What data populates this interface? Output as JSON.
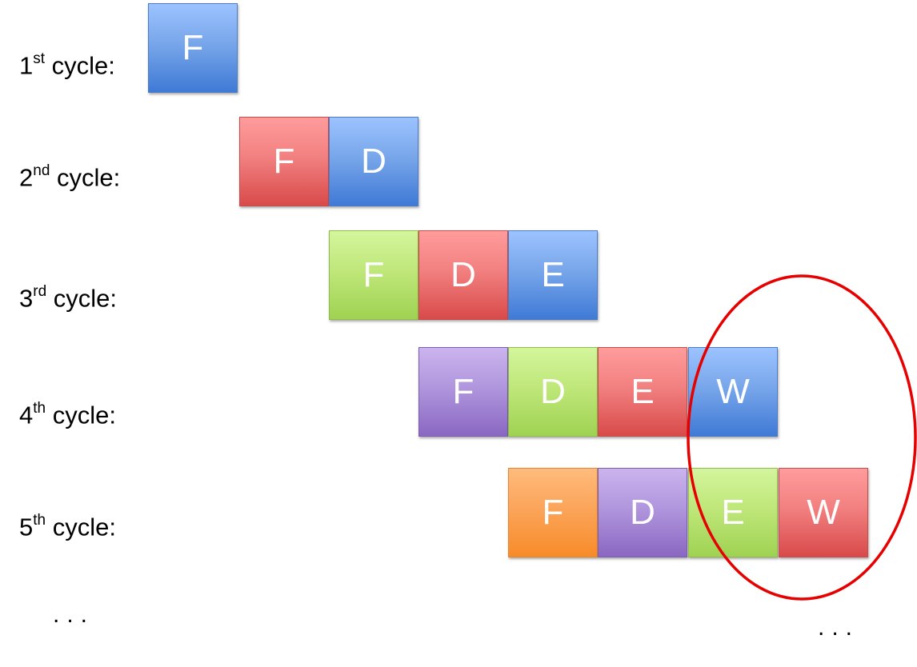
{
  "rows": [
    {
      "label_main": "1",
      "label_sup": "st",
      "label_rest": " cycle:",
      "stages": [
        {
          "text": "F",
          "color": "blue"
        }
      ]
    },
    {
      "label_main": "2",
      "label_sup": "nd",
      "label_rest": " cycle:",
      "stages": [
        {
          "text": "F",
          "color": "red"
        },
        {
          "text": "D",
          "color": "blue"
        }
      ]
    },
    {
      "label_main": "3",
      "label_sup": "rd",
      "label_rest": " cycle:",
      "stages": [
        {
          "text": "F",
          "color": "green"
        },
        {
          "text": "D",
          "color": "red"
        },
        {
          "text": "E",
          "color": "blue"
        }
      ]
    },
    {
      "label_main": "4",
      "label_sup": "th",
      "label_rest": " cycle:",
      "stages": [
        {
          "text": "F",
          "color": "purple"
        },
        {
          "text": "D",
          "color": "green"
        },
        {
          "text": "E",
          "color": "red"
        },
        {
          "text": "W",
          "color": "blue"
        }
      ]
    },
    {
      "label_main": "5",
      "label_sup": "th",
      "label_rest": " cycle:",
      "stages": [
        {
          "text": "F",
          "color": "orange"
        },
        {
          "text": "D",
          "color": "purple"
        },
        {
          "text": "E",
          "color": "green"
        },
        {
          "text": "W",
          "color": "red"
        }
      ]
    }
  ],
  "ellipsis_left": "...",
  "ellipsis_right": "...",
  "highlight_color": "#e60000"
}
